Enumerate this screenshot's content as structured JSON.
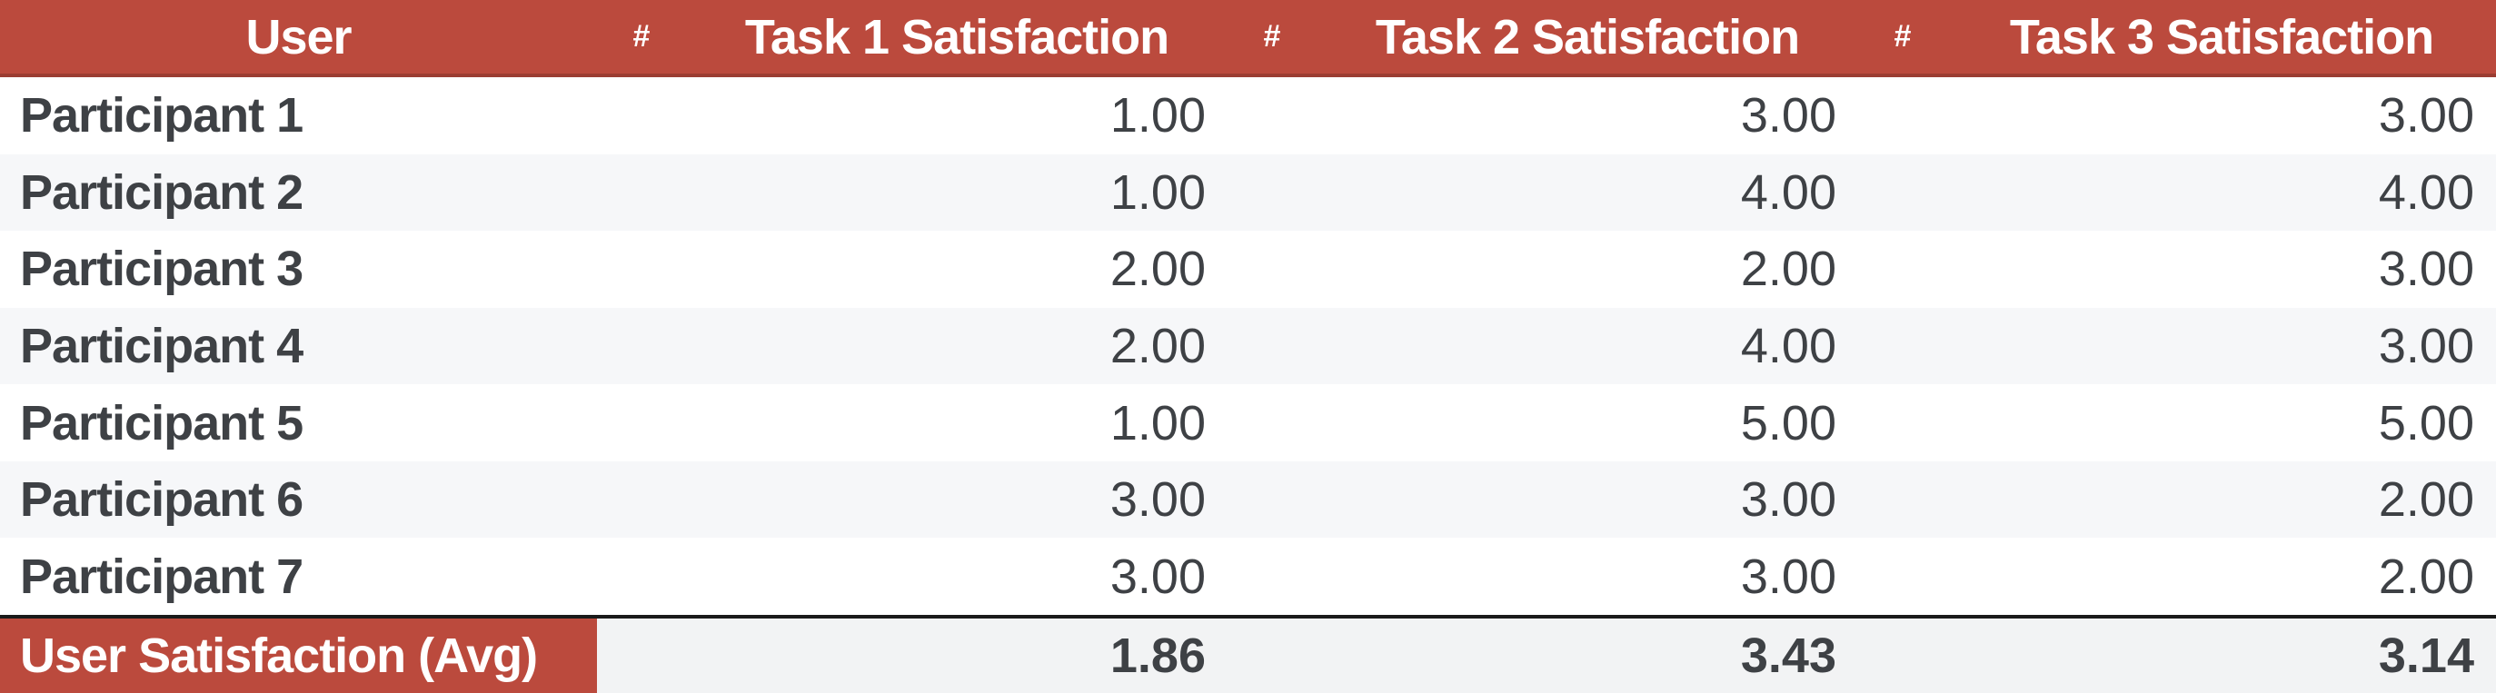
{
  "table": {
    "header": {
      "user": "User",
      "hash1": "#",
      "task1": "Task 1 Satisfaction",
      "hash2": "#",
      "task2": "Task 2 Satisfaction",
      "hash3": "#",
      "task3": "Task 3 Satisfaction"
    },
    "rows": [
      {
        "user": "Participant 1",
        "task1": "1.00",
        "task2": "3.00",
        "task3": "3.00"
      },
      {
        "user": "Participant 2",
        "task1": "1.00",
        "task2": "4.00",
        "task3": "4.00"
      },
      {
        "user": "Participant 3",
        "task1": "2.00",
        "task2": "2.00",
        "task3": "3.00"
      },
      {
        "user": "Participant 4",
        "task1": "2.00",
        "task2": "4.00",
        "task3": "3.00"
      },
      {
        "user": "Participant 5",
        "task1": "1.00",
        "task2": "5.00",
        "task3": "5.00"
      },
      {
        "user": "Participant 6",
        "task1": "3.00",
        "task2": "3.00",
        "task3": "2.00"
      },
      {
        "user": "Participant 7",
        "task1": "3.00",
        "task2": "3.00",
        "task3": "2.00"
      }
    ],
    "footer": {
      "label": "User Satisfaction (Avg)",
      "task1": "1.86",
      "task2": "3.43",
      "task3": "3.14"
    }
  },
  "colors": {
    "header_bg": "#BB4A3D",
    "header_underline": "#9B3D32",
    "header_text": "#FFFFFF",
    "stripe_bg": "#F6F7F9",
    "footer_bg": "#F2F3F4",
    "footer_border": "#1A1A1A",
    "body_text": "#3E4145"
  },
  "chart_data": {
    "type": "table",
    "columns": [
      "User",
      "#",
      "Task 1 Satisfaction",
      "#",
      "Task 2 Satisfaction",
      "#",
      "Task 3 Satisfaction"
    ],
    "categories": [
      "Participant 1",
      "Participant 2",
      "Participant 3",
      "Participant 4",
      "Participant 5",
      "Participant 6",
      "Participant 7"
    ],
    "series": [
      {
        "name": "Task 1 Satisfaction",
        "values": [
          1.0,
          1.0,
          2.0,
          2.0,
          1.0,
          3.0,
          3.0
        ],
        "average": 1.86
      },
      {
        "name": "Task 2 Satisfaction",
        "values": [
          3.0,
          4.0,
          2.0,
          4.0,
          5.0,
          3.0,
          3.0
        ],
        "average": 3.43
      },
      {
        "name": "Task 3 Satisfaction",
        "values": [
          3.0,
          4.0,
          3.0,
          3.0,
          5.0,
          2.0,
          2.0
        ],
        "average": 3.14
      }
    ],
    "footer_label": "User Satisfaction (Avg)"
  }
}
